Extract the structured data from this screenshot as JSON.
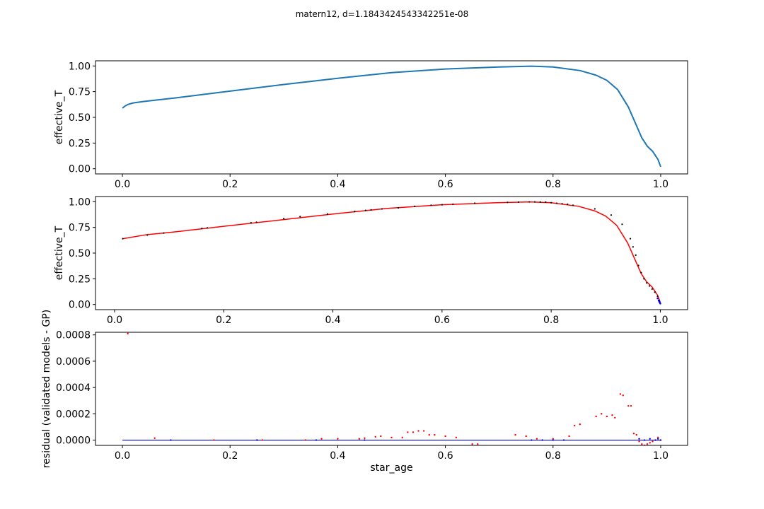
{
  "figure": {
    "suptitle": "matern12, d=1.1843424543342251e-08"
  },
  "chart_data": [
    {
      "type": "line",
      "panel": "top",
      "xlabel": "",
      "ylabel": "effective_T",
      "xlim": [
        -0.05,
        1.05
      ],
      "ylim": [
        -0.05,
        1.05
      ],
      "xticks": [
        0.0,
        0.2,
        0.4,
        0.6,
        0.8,
        1.0
      ],
      "xtick_labels": [
        "0.0",
        "0.2",
        "0.4",
        "0.6",
        "0.8",
        "1.0"
      ],
      "yticks": [
        0.0,
        0.25,
        0.5,
        0.75,
        1.0
      ],
      "ytick_labels": [
        "0.00",
        "0.25",
        "0.50",
        "0.75",
        "1.00"
      ],
      "grid": false,
      "series": [
        {
          "color": "#1f77b4",
          "x": [
            0.0,
            0.005,
            0.01,
            0.02,
            0.04,
            0.1,
            0.2,
            0.3,
            0.4,
            0.5,
            0.6,
            0.7,
            0.76,
            0.8,
            0.85,
            0.88,
            0.9,
            0.92,
            0.94,
            0.955,
            0.965,
            0.975,
            0.985,
            0.99,
            0.995,
            1.0
          ],
          "y": [
            0.59,
            0.61,
            0.625,
            0.64,
            0.655,
            0.69,
            0.755,
            0.82,
            0.88,
            0.935,
            0.97,
            0.99,
            0.998,
            0.99,
            0.955,
            0.91,
            0.86,
            0.77,
            0.6,
            0.42,
            0.3,
            0.22,
            0.17,
            0.13,
            0.09,
            0.02
          ]
        }
      ]
    },
    {
      "type": "line",
      "panel": "middle",
      "xlabel": "",
      "ylabel": "effective_T",
      "xlim": [
        -0.035,
        1.05
      ],
      "ylim": [
        -0.05,
        1.05
      ],
      "xticks": [
        0.0,
        0.2,
        0.4,
        0.6,
        0.8,
        1.0
      ],
      "xtick_labels": [
        "0.0",
        "0.2",
        "0.4",
        "0.6",
        "0.8",
        "1.0"
      ],
      "yticks": [
        0.0,
        0.25,
        0.5,
        0.75,
        1.0
      ],
      "ytick_labels": [
        "0.00",
        "0.25",
        "0.50",
        "0.75",
        "1.00"
      ],
      "grid": false,
      "series": [
        {
          "color": "#ff0000",
          "x": [
            0.015,
            0.06,
            0.1,
            0.2,
            0.3,
            0.4,
            0.5,
            0.6,
            0.7,
            0.76,
            0.8,
            0.85,
            0.88,
            0.9,
            0.92,
            0.94,
            0.955,
            0.965,
            0.975,
            0.985,
            0.99,
            0.995,
            1.0
          ],
          "y": [
            0.64,
            0.68,
            0.7,
            0.76,
            0.82,
            0.88,
            0.935,
            0.97,
            0.99,
            0.998,
            0.99,
            0.955,
            0.91,
            0.86,
            0.77,
            0.6,
            0.42,
            0.3,
            0.22,
            0.17,
            0.13,
            0.09,
            0.02
          ]
        }
      ],
      "points": {
        "color": "#000000",
        "x": [
          0.015,
          0.06,
          0.09,
          0.16,
          0.17,
          0.25,
          0.26,
          0.31,
          0.34,
          0.39,
          0.44,
          0.46,
          0.47,
          0.49,
          0.52,
          0.55,
          0.58,
          0.6,
          0.62,
          0.66,
          0.72,
          0.74,
          0.76,
          0.77,
          0.78,
          0.79,
          0.8,
          0.81,
          0.82,
          0.83,
          0.84,
          0.88,
          0.91,
          0.93,
          0.945,
          0.95,
          0.955,
          0.96,
          0.965,
          0.97,
          0.975,
          0.98,
          0.985,
          0.99,
          0.995,
          0.998,
          1.0
        ],
        "y": [
          0.64,
          0.675,
          0.695,
          0.74,
          0.745,
          0.795,
          0.8,
          0.835,
          0.855,
          0.88,
          0.905,
          0.915,
          0.92,
          0.93,
          0.94,
          0.955,
          0.965,
          0.97,
          0.975,
          0.985,
          0.993,
          0.996,
          0.998,
          0.998,
          0.997,
          0.996,
          0.99,
          0.985,
          0.98,
          0.975,
          0.965,
          0.93,
          0.87,
          0.78,
          0.64,
          0.56,
          0.48,
          0.38,
          0.31,
          0.25,
          0.21,
          0.18,
          0.15,
          0.12,
          0.08,
          0.04,
          0.01
        ]
      },
      "blue_points": {
        "color": "#0000ff",
        "x": [
          0.995,
          0.997,
          0.998,
          0.999,
          1.0
        ],
        "y": [
          0.06,
          0.04,
          0.03,
          0.02,
          0.01
        ]
      }
    },
    {
      "type": "scatter",
      "panel": "bottom",
      "xlabel": "star_age",
      "ylabel": "residual (validated models - GP)",
      "xlim": [
        -0.05,
        1.05
      ],
      "ylim": [
        -4e-05,
        0.00082
      ],
      "xticks": [
        0.0,
        0.2,
        0.4,
        0.6,
        0.8,
        1.0
      ],
      "xtick_labels": [
        "0.0",
        "0.2",
        "0.4",
        "0.6",
        "0.8",
        "1.0"
      ],
      "yticks": [
        0.0,
        0.0002,
        0.0004,
        0.0006,
        0.0008
      ],
      "ytick_labels": [
        "0.0000",
        "0.0002",
        "0.0004",
        "0.0006",
        "0.0008"
      ],
      "grid": false,
      "zero_line": {
        "color": "#0000aa",
        "x": [
          0.0,
          1.0
        ],
        "y": [
          0.0,
          0.0
        ]
      },
      "series": [
        {
          "color": "#ff0000",
          "x": [
            0.01,
            0.06,
            0.17,
            0.25,
            0.26,
            0.34,
            0.37,
            0.4,
            0.44,
            0.45,
            0.47,
            0.48,
            0.5,
            0.52,
            0.53,
            0.54,
            0.55,
            0.56,
            0.57,
            0.58,
            0.6,
            0.62,
            0.65,
            0.66,
            0.73,
            0.75,
            0.77,
            0.8,
            0.83,
            0.84,
            0.85,
            0.88,
            0.89,
            0.9,
            0.91,
            0.915,
            0.925,
            0.93,
            0.94,
            0.945,
            0.95,
            0.955,
            0.96,
            0.965,
            0.97,
            0.975,
            0.98,
            0.985,
            0.99,
            0.995,
            1.0
          ],
          "y": [
            0.00081,
            1.5e-05,
            0.0,
            0.0,
            0.0,
            0.0,
            1e-05,
            1e-05,
            1e-05,
            1.5e-05,
            2.5e-05,
            3e-05,
            2e-05,
            2e-05,
            6e-05,
            6e-05,
            7e-05,
            7e-05,
            4e-05,
            4e-05,
            3e-05,
            2e-05,
            -3e-05,
            -3e-05,
            4e-05,
            3e-05,
            1e-05,
            1e-05,
            3e-05,
            0.00011,
            0.00012,
            0.00018,
            0.0002,
            0.00018,
            0.00019,
            0.00017,
            0.00035,
            0.00034,
            0.00026,
            0.00026,
            5e-05,
            4e-05,
            -1e-05,
            -3e-05,
            -4e-05,
            -3e-05,
            -2e-05,
            -1e-05,
            0.0,
            2e-05,
            0.0
          ]
        },
        {
          "color": "#0000ff",
          "x": [
            0.09,
            0.25,
            0.36,
            0.45,
            0.76,
            0.78,
            0.8,
            0.82,
            0.96,
            0.97,
            0.98,
            0.99,
            0.995,
            1.0
          ],
          "y": [
            0.0,
            0.0,
            0.0,
            0.0,
            0.0,
            0.0,
            0.0,
            0.0,
            1e-05,
            0.0,
            1e-05,
            0.0,
            1e-05,
            0.0
          ]
        }
      ]
    }
  ]
}
